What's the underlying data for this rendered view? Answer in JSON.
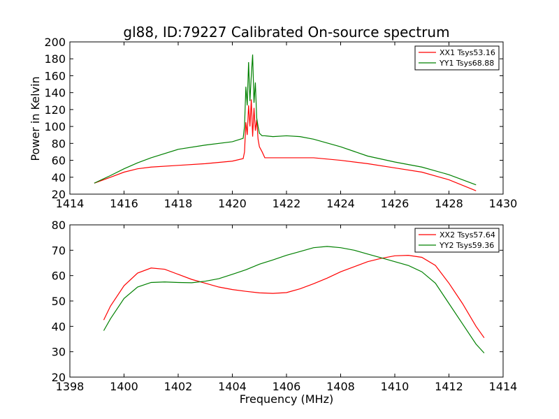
{
  "title": "gl88, ID:79227 Calibrated On-source spectrum",
  "chart_data": [
    {
      "type": "line",
      "title": "gl88, ID:79227 Calibrated On-source spectrum",
      "xlabel": "",
      "ylabel": "Power in Kelvin",
      "xlim": [
        1414,
        1430
      ],
      "ylim": [
        20,
        200
      ],
      "xticks": [
        "1414",
        "1416",
        "1418",
        "1420",
        "1422",
        "1424",
        "1426",
        "1428",
        "1430"
      ],
      "yticks": [
        "20",
        "40",
        "60",
        "80",
        "100",
        "120",
        "140",
        "160",
        "180",
        "200"
      ],
      "grid": false,
      "legend_position": "top-right",
      "series": [
        {
          "name": "XX1 Tsys53.16",
          "color": "#ff0000",
          "x": [
            1414.9,
            1415.5,
            1416,
            1416.5,
            1417,
            1418,
            1419,
            1420,
            1420.4,
            1420.45,
            1420.5,
            1420.55,
            1420.6,
            1420.65,
            1420.7,
            1420.75,
            1420.8,
            1420.85,
            1420.9,
            1420.95,
            1421.0,
            1421.1,
            1421.2,
            1421.5,
            1422,
            1423,
            1424,
            1425,
            1426,
            1427,
            1428,
            1429
          ],
          "y": [
            33,
            40,
            46,
            50,
            52,
            54,
            56,
            59,
            62,
            70,
            105,
            90,
            125,
            100,
            132,
            88,
            122,
            95,
            108,
            85,
            76,
            70,
            63,
            63,
            63,
            63,
            60,
            56,
            51,
            46,
            37,
            24
          ]
        },
        {
          "name": "YY1 Tsys68.88",
          "color": "#008000",
          "x": [
            1414.9,
            1415.5,
            1416,
            1416.5,
            1417,
            1418,
            1419,
            1420,
            1420.4,
            1420.45,
            1420.5,
            1420.55,
            1420.6,
            1420.65,
            1420.7,
            1420.75,
            1420.8,
            1420.85,
            1420.9,
            1420.95,
            1421.0,
            1421.1,
            1421.2,
            1421.5,
            1422,
            1422.5,
            1423,
            1424,
            1425,
            1426,
            1427,
            1428,
            1429
          ],
          "y": [
            33,
            42,
            50,
            57,
            63,
            73,
            78,
            82,
            86,
            100,
            147,
            125,
            176,
            130,
            160,
            185,
            128,
            152,
            110,
            100,
            92,
            89,
            89,
            88,
            89,
            88,
            85,
            76,
            65,
            58,
            52,
            43,
            31
          ]
        }
      ]
    },
    {
      "type": "line",
      "title": "",
      "xlabel": "Frequency (MHz)",
      "ylabel": "",
      "xlim": [
        1398,
        1414
      ],
      "ylim": [
        20,
        80
      ],
      "xticks": [
        "1398",
        "1400",
        "1402",
        "1404",
        "1406",
        "1408",
        "1410",
        "1412",
        "1414"
      ],
      "yticks": [
        "20",
        "30",
        "40",
        "50",
        "60",
        "70",
        "80"
      ],
      "grid": false,
      "legend_position": "top-right",
      "series": [
        {
          "name": "XX2 Tsys57.64",
          "color": "#ff0000",
          "x": [
            1399.25,
            1399.5,
            1400,
            1400.5,
            1401,
            1401.5,
            1402,
            1402.5,
            1403,
            1403.5,
            1404,
            1404.5,
            1405,
            1405.5,
            1406,
            1406.5,
            1407,
            1407.5,
            1408,
            1408.5,
            1409,
            1409.5,
            1410,
            1410.5,
            1411,
            1411.5,
            1412,
            1412.5,
            1413,
            1413.3
          ],
          "y": [
            42.5,
            48,
            56,
            61,
            63,
            62.5,
            60.5,
            58.5,
            57,
            55.5,
            54.5,
            53.8,
            53.2,
            53,
            53.3,
            54.8,
            56.8,
            59,
            61.5,
            63.5,
            65.5,
            66.8,
            67.8,
            68,
            67.2,
            64,
            57,
            49,
            40,
            35.5
          ]
        },
        {
          "name": "YY2 Tsys59.36",
          "color": "#008000",
          "x": [
            1399.25,
            1399.5,
            1400,
            1400.5,
            1401,
            1401.5,
            1402,
            1402.5,
            1403,
            1403.5,
            1404,
            1404.5,
            1405,
            1405.5,
            1406,
            1406.5,
            1407,
            1407.5,
            1408,
            1408.5,
            1409,
            1409.5,
            1410,
            1410.5,
            1411,
            1411.5,
            1412,
            1412.5,
            1413,
            1413.3
          ],
          "y": [
            38.3,
            43,
            51,
            55.5,
            57.3,
            57.5,
            57.3,
            57.2,
            57.8,
            58.8,
            60.5,
            62.3,
            64.5,
            66.2,
            68,
            69.5,
            71,
            71.5,
            71,
            70,
            68.5,
            67,
            65.5,
            64,
            61.5,
            57,
            49,
            41,
            33,
            29.5
          ]
        }
      ]
    }
  ]
}
